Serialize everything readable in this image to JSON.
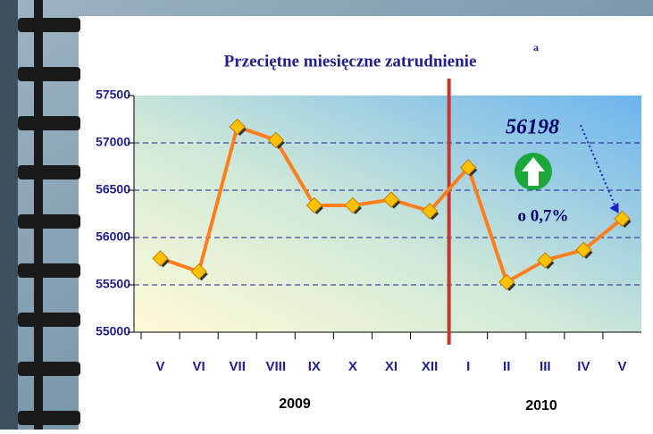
{
  "chart_data": {
    "type": "line",
    "title": "Przeciętne miesięczne zatrudnienie",
    "title_superscript": "a",
    "categories": [
      "V",
      "VI",
      "VII",
      "VIII",
      "IX",
      "X",
      "XI",
      "XII",
      "I",
      "II",
      "III",
      "IV",
      "V"
    ],
    "series": [
      {
        "color": "#ff7f1e",
        "marker_color": "#ffc000",
        "values": [
          55780,
          55640,
          57170,
          57030,
          56340,
          56340,
          56400,
          56280,
          56740,
          55530,
          55760,
          55870,
          56198
        ]
      }
    ],
    "ylim": [
      55000,
      57500
    ],
    "yticks": [
      55000,
      55500,
      56000,
      56500,
      57000,
      57500
    ],
    "grid": true,
    "year_labels": [
      "2009",
      "2010"
    ],
    "annotations": [
      "56198",
      "o 0,7%"
    ]
  }
}
